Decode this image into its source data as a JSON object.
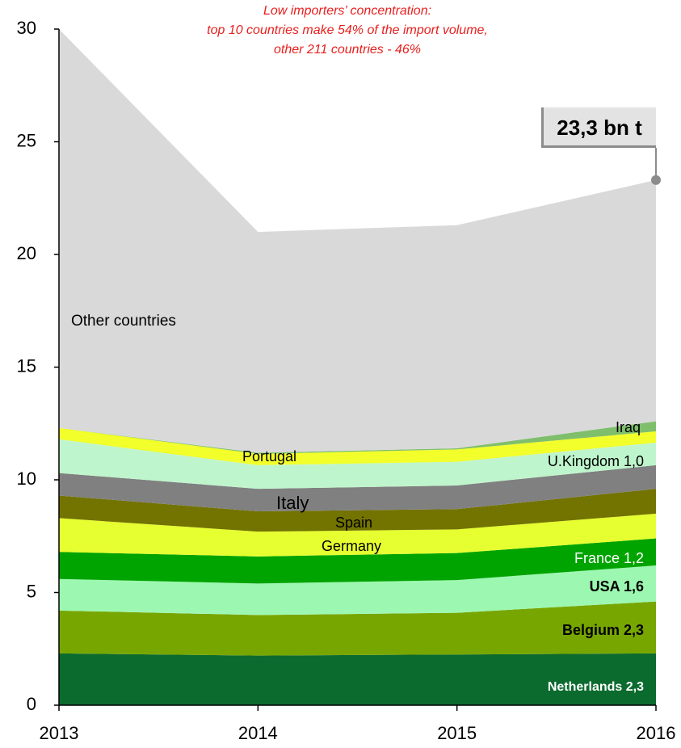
{
  "chart_data": {
    "type": "stacked_area",
    "annotation": [
      "Low importers’ concentration:",
      "top 10 countries make 54% of the import volume,",
      "other  211 countries - 46%"
    ],
    "callout": "23,3 bn t",
    "categories": [
      "2013",
      "2014",
      "2015",
      "2016"
    ],
    "ylim": [
      0,
      30
    ],
    "yticks": [
      0,
      5,
      10,
      15,
      20,
      25,
      30
    ],
    "series": [
      {
        "name": "Netherlands 2,3",
        "color": "#0b6b2e",
        "values": [
          2.3,
          2.2,
          2.25,
          2.3
        ]
      },
      {
        "name": "Belgium 2,3",
        "color": "#78a600",
        "values": [
          1.9,
          1.8,
          1.85,
          2.3
        ]
      },
      {
        "name": "USA 1,6",
        "color": "#9cf8b0",
        "values": [
          1.4,
          1.4,
          1.45,
          1.6
        ]
      },
      {
        "name": "France 1,2",
        "color": "#00a400",
        "values": [
          1.2,
          1.2,
          1.2,
          1.2
        ]
      },
      {
        "name": "Germany",
        "color": "#e6ff30",
        "values": [
          1.5,
          1.1,
          1.05,
          1.1
        ]
      },
      {
        "name": "Spain",
        "color": "#737300",
        "values": [
          1.0,
          0.9,
          0.9,
          1.1
        ]
      },
      {
        "name": "Italy",
        "color": "#808080",
        "values": [
          1.0,
          1.0,
          1.05,
          1.05
        ]
      },
      {
        "name": "U.Kingdom 1,0",
        "color": "#bff5cc",
        "values": [
          1.5,
          1.05,
          1.05,
          1.0
        ]
      },
      {
        "name": "Portugal",
        "color": "#f2ff2a",
        "values": [
          0.5,
          0.5,
          0.55,
          0.5
        ]
      },
      {
        "name": "Iraq",
        "color": "#7fbf6c",
        "values": [
          0,
          0.05,
          0.05,
          0.45
        ]
      },
      {
        "name": "Other countries",
        "color": "#d9d9d9",
        "values": [
          17.7,
          9.8,
          9.9,
          10.7
        ]
      }
    ]
  }
}
